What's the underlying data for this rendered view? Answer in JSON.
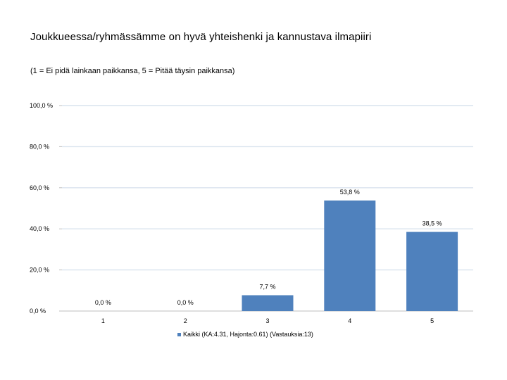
{
  "chart_data": {
    "type": "bar",
    "title": "Joukkueessa/ryhmässämme on hyvä yhteishenki ja kannustava ilmapiiri",
    "subtitle": "(1 = Ei pidä lainkaan paikkansa, 5 = Pitää täysin paikkansa)",
    "categories": [
      "1",
      "2",
      "3",
      "4",
      "5"
    ],
    "series": [
      {
        "name": "Kaikki (KA:4.31, Hajonta:0.61) (Vastauksia:13)",
        "values": [
          0.0,
          0.0,
          7.7,
          53.8,
          38.5
        ],
        "labels": [
          "0,0 %",
          "0,0 %",
          "7,7 %",
          "53,8 %",
          "38,5 %"
        ]
      }
    ],
    "ylim": [
      0,
      100
    ],
    "yticks": [
      0,
      20,
      40,
      60,
      80,
      100
    ],
    "ytick_labels": [
      "0,0 %",
      "20,0 %",
      "40,0 %",
      "60,0 %",
      "80,0 %",
      "100,0 %"
    ],
    "grid": true,
    "legend_position": "bottom",
    "colors": {
      "bar": "#4f81bd",
      "grid": "#d9e3ee"
    }
  }
}
